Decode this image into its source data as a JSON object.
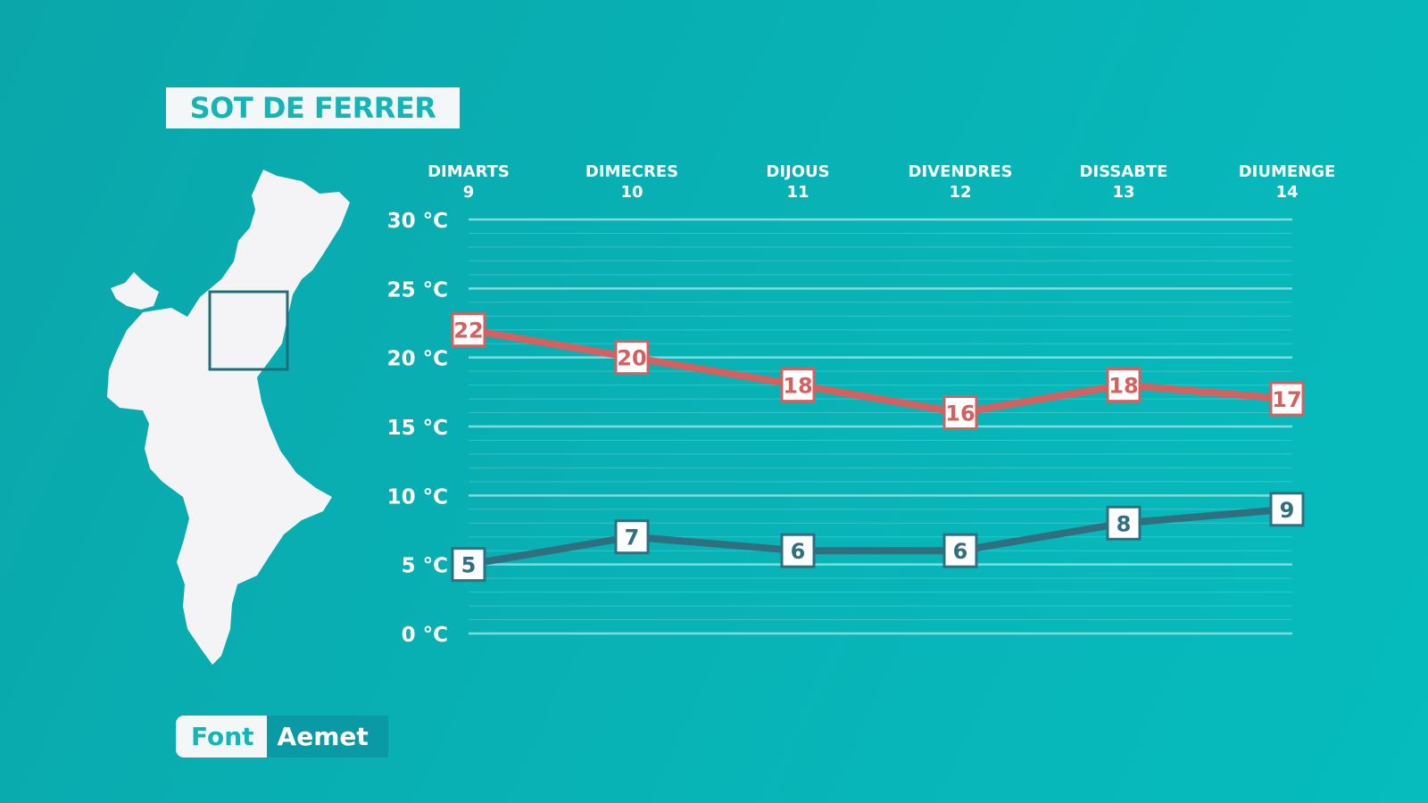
{
  "location_title": "SOT DE FERRER",
  "source": {
    "label": "Font",
    "name": "Aemet"
  },
  "map": {
    "region_icon": "region-map-icon",
    "highlight": "location-frame"
  },
  "colors": {
    "max_line": "#d56060",
    "min_line": "#2f6f80",
    "grid": "#8ee0e2",
    "text": "#ffffff"
  },
  "chart_data": {
    "type": "line",
    "days": [
      {
        "name": "DIMARTS",
        "date": "9"
      },
      {
        "name": "DIMECRES",
        "date": "10"
      },
      {
        "name": "DIJOUS",
        "date": "11"
      },
      {
        "name": "DIVENDRES",
        "date": "12"
      },
      {
        "name": "DISSABTE",
        "date": "13"
      },
      {
        "name": "DIUMENGE",
        "date": "14"
      }
    ],
    "series": [
      {
        "values": [
          22,
          20,
          18,
          16,
          18,
          17
        ]
      },
      {
        "values": [
          5,
          7,
          6,
          6,
          8,
          9
        ]
      }
    ],
    "y_ticks": [
      "30 °C",
      "25 °C",
      "20 °C",
      "15 °C",
      "10 °C",
      "5 °C",
      "0 °C"
    ],
    "ylim": [
      0,
      30
    ],
    "y_unit": "°C",
    "grid": true
  }
}
